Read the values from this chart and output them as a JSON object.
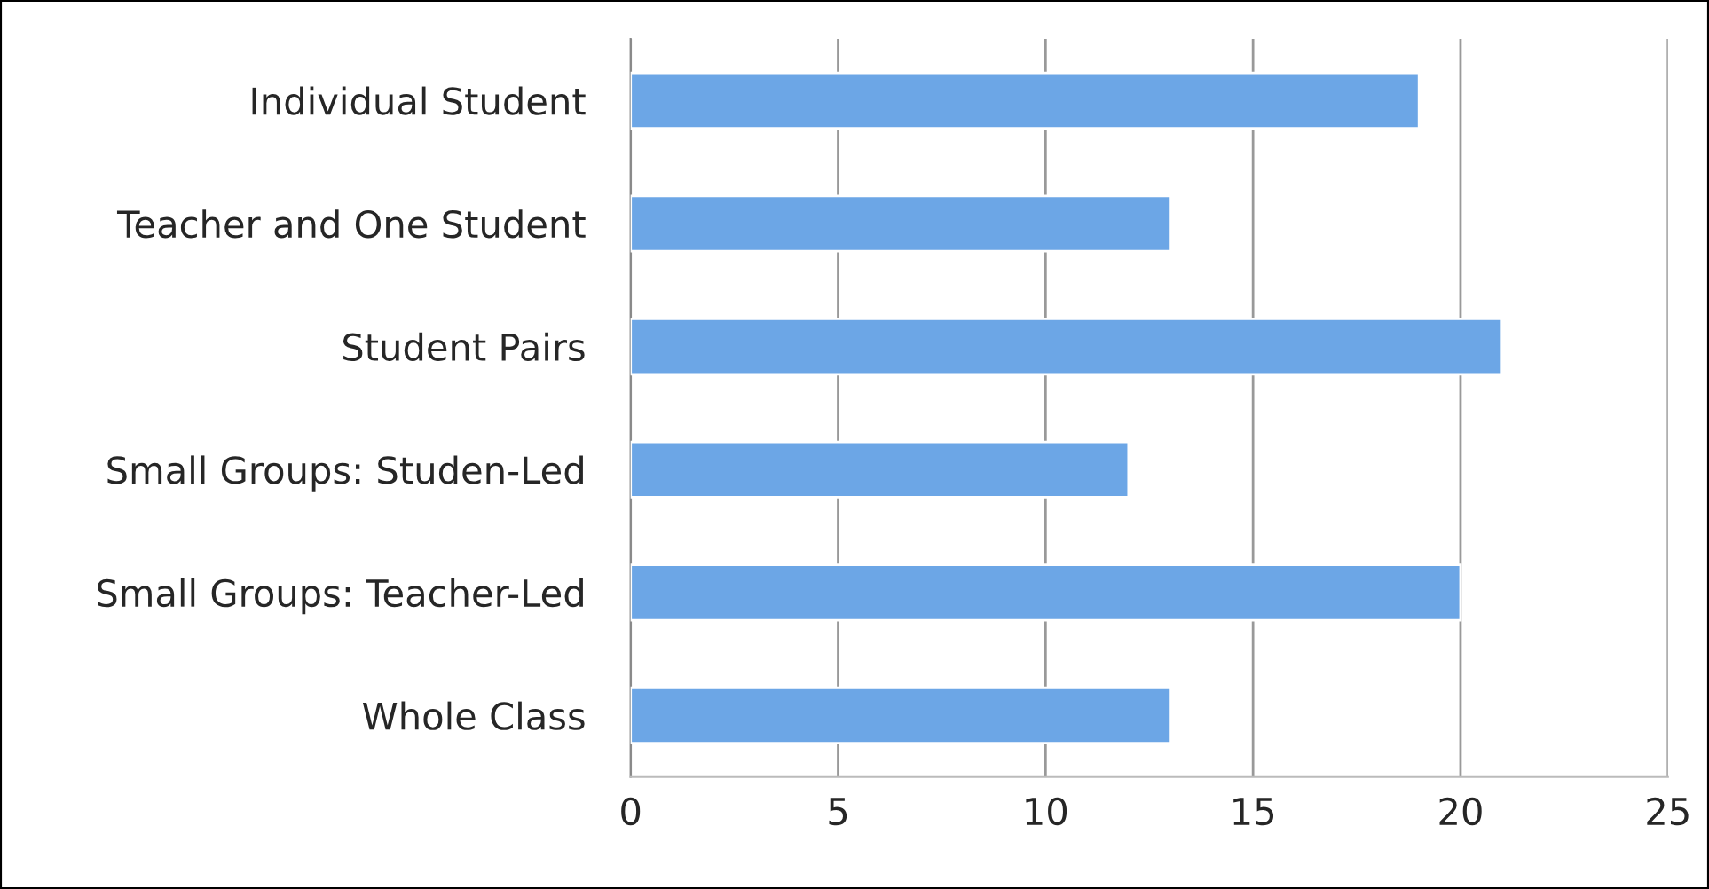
{
  "chart_data": {
    "type": "bar",
    "orientation": "horizontal",
    "categories": [
      "Individual Student",
      "Teacher and One Student",
      "Student Pairs",
      "Small Groups: Studen-Led",
      "Small Groups: Teacher-Led",
      "Whole Class"
    ],
    "values": [
      19,
      13,
      21,
      12,
      20,
      13
    ],
    "color": "#6ca6e6",
    "xlim": [
      0,
      25
    ],
    "xticks": [
      0,
      5,
      10,
      15,
      20,
      25
    ],
    "grid": "x",
    "legend": false
  }
}
